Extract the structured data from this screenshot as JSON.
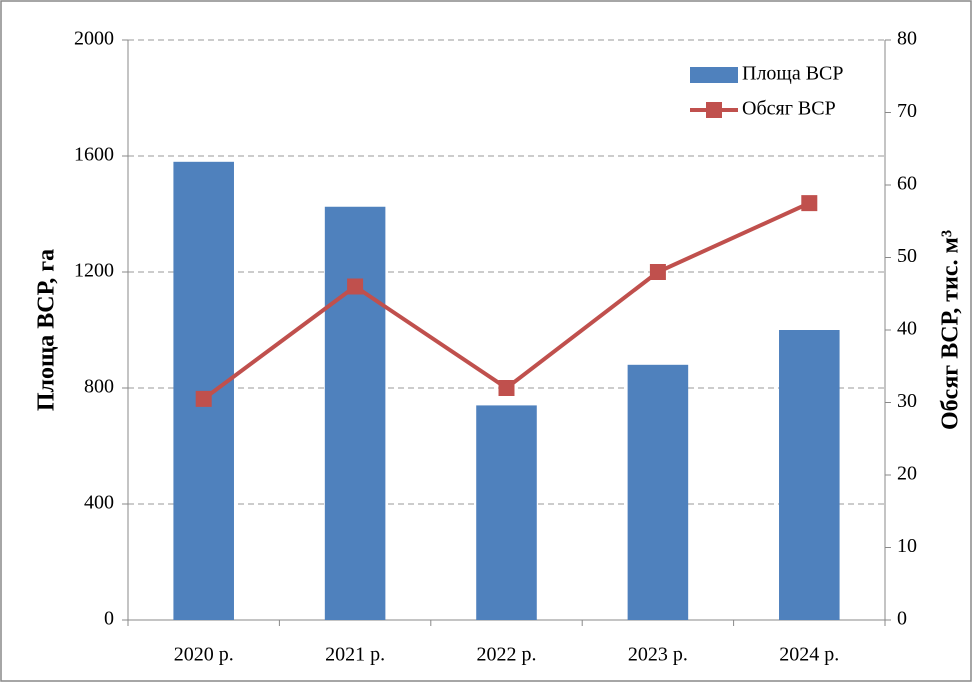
{
  "chart_data": {
    "type": "bar_line",
    "categories": [
      "2020 р.",
      "2021 р.",
      "2022 р.",
      "2023 р.",
      "2024 р."
    ],
    "series": [
      {
        "name": "Площа ВСР",
        "color": "#4f81bd",
        "values": [
          1580,
          1425,
          740,
          880,
          1000
        ]
      },
      {
        "name": "Обсяг ВСР",
        "color": "#c0504d",
        "axis": "y2",
        "values": [
          30.5,
          46,
          32,
          48,
          57.5
        ]
      }
    ],
    "ylabel": "Площа ВСР, га",
    "y2label": "Обсяг ВСР, тис. м³",
    "ylim": [
      0,
      2000
    ],
    "yticks": [
      0,
      400,
      800,
      1200,
      1600,
      2000
    ],
    "y2lim": [
      0,
      80
    ],
    "y2ticks": [
      0,
      10,
      20,
      30,
      40,
      50,
      60,
      70,
      80
    ],
    "grid": true,
    "legend": "upper right"
  }
}
